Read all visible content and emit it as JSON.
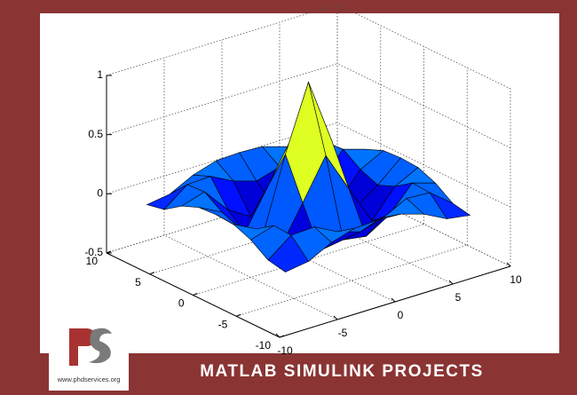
{
  "chart_data": {
    "type": "surface",
    "x": [
      -8,
      -6,
      -4,
      -2,
      0,
      2,
      4,
      6,
      8
    ],
    "y": [
      -8,
      -6,
      -4,
      -2,
      0,
      2,
      4,
      6,
      8
    ],
    "z": [
      [
        -0.08,
        -0.05,
        0.05,
        0.11,
        0.12,
        0.11,
        0.05,
        -0.05,
        -0.08
      ],
      [
        -0.05,
        0.1,
        0.11,
        0.01,
        -0.05,
        0.01,
        0.11,
        0.1,
        -0.05
      ],
      [
        0.05,
        0.11,
        -0.1,
        -0.22,
        -0.19,
        -0.22,
        -0.1,
        0.11,
        0.05
      ],
      [
        0.11,
        0.01,
        -0.22,
        0.11,
        0.45,
        0.11,
        -0.22,
        0.01,
        0.11
      ],
      [
        0.12,
        -0.05,
        -0.19,
        0.45,
        1,
        0.45,
        -0.19,
        -0.05,
        0.12
      ],
      [
        0.11,
        0.01,
        -0.22,
        0.11,
        0.45,
        0.11,
        -0.22,
        0.01,
        0.11
      ],
      [
        0.05,
        0.11,
        -0.1,
        -0.22,
        -0.19,
        -0.22,
        -0.1,
        0.11,
        0.05
      ],
      [
        -0.05,
        0.1,
        0.11,
        0.01,
        -0.05,
        0.01,
        0.11,
        0.1,
        -0.05
      ],
      [
        -0.08,
        -0.05,
        0.05,
        0.11,
        0.12,
        0.11,
        0.05,
        -0.05,
        -0.08
      ]
    ],
    "xlim": [
      -10,
      10
    ],
    "ylim": [
      -10,
      10
    ],
    "zlim": [
      -0.5,
      1
    ],
    "xticks": [
      -10,
      -5,
      0,
      5,
      10
    ],
    "yticks": [
      -10,
      -5,
      0,
      5,
      10
    ],
    "zticks": [
      -0.5,
      0,
      0.5,
      1
    ],
    "grid": true,
    "colormap": "jet",
    "edge_color": "#000000"
  },
  "banner": {
    "title": "MATLAB SIMULINK PROJECTS"
  },
  "logo": {
    "text": "www.phdservices.org"
  }
}
